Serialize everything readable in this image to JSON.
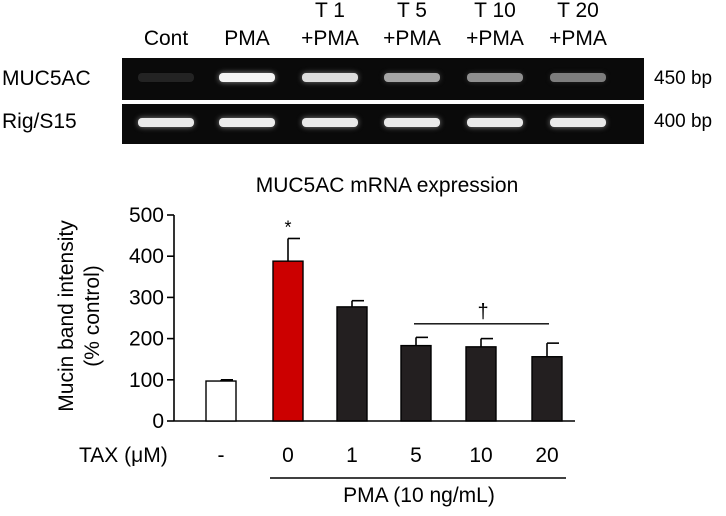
{
  "gel": {
    "lanes": [
      {
        "line1": "",
        "line2": "Cont"
      },
      {
        "line1": "",
        "line2": "PMA"
      },
      {
        "line1": "T 1",
        "line2": "+PMA"
      },
      {
        "line1": "T 5",
        "line2": "+PMA"
      },
      {
        "line1": "T 10",
        "line2": "+PMA"
      },
      {
        "line1": "T 20",
        "line2": "+PMA"
      }
    ],
    "rows": [
      {
        "name": "MUC5AC",
        "size": "450 bp",
        "intensity": [
          0.02,
          0.95,
          0.85,
          0.6,
          0.5,
          0.42
        ]
      },
      {
        "name": "Rig/S15",
        "size": "400 bp",
        "intensity": [
          0.9,
          0.92,
          0.9,
          0.9,
          0.9,
          0.9
        ]
      }
    ]
  },
  "chart_data": {
    "type": "bar",
    "title": "MUC5AC mRNA expression",
    "ylabel_line1": "Mucin band intensity",
    "ylabel_line2": "(% control)",
    "xlabel": "TAX (μM)",
    "group_label": "PMA (10 ng/mL)",
    "categories": [
      "-",
      "0",
      "1",
      "5",
      "10",
      "20"
    ],
    "values": [
      97,
      388,
      277,
      183,
      180,
      156
    ],
    "errors": [
      3,
      55,
      15,
      20,
      20,
      33
    ],
    "colors": [
      "#ffffff",
      "#cc0000",
      "#231f20",
      "#231f20",
      "#231f20",
      "#231f20"
    ],
    "ylim": [
      0,
      500
    ],
    "yticks": [
      0,
      100,
      200,
      300,
      400,
      500
    ],
    "annotations": {
      "star": "*",
      "dagger": "†"
    }
  }
}
